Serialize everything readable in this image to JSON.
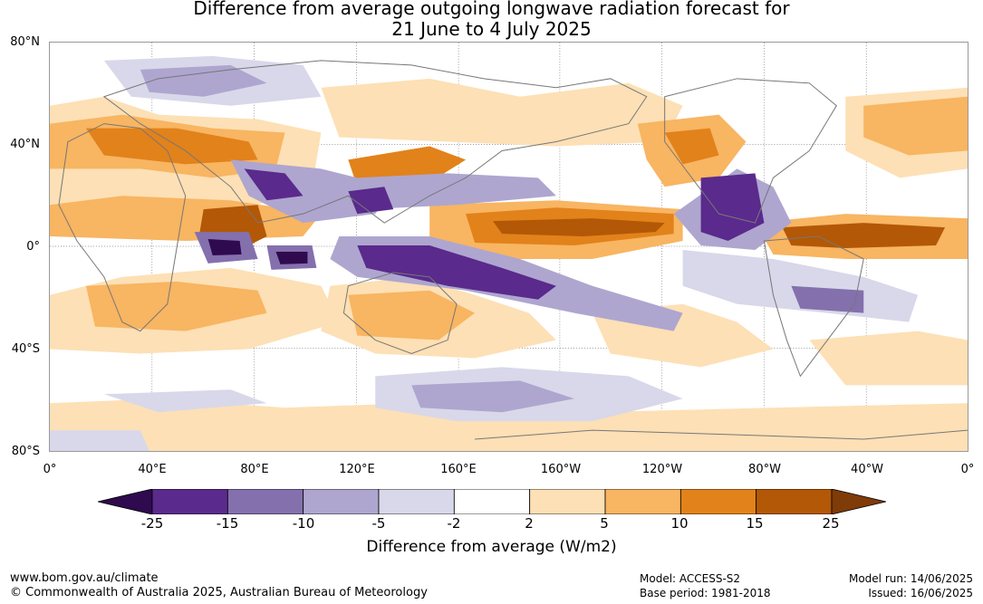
{
  "title": {
    "line1": "Difference from average outgoing longwave radiation forecast for",
    "line2": "21 June to 4 July 2025"
  },
  "map": {
    "lat_labels": [
      "80°N",
      "40°N",
      "0°",
      "40°S",
      "80°S"
    ],
    "lon_labels": [
      "0°",
      "40°E",
      "80°E",
      "120°E",
      "160°E",
      "160°W",
      "120°W",
      "80°W",
      "40°W",
      "0°"
    ]
  },
  "colorbar": {
    "title": "Difference from average (W/m2)",
    "tick_labels": [
      "-25",
      "-15",
      "-10",
      "-5",
      "-2",
      "2",
      "5",
      "10",
      "15",
      "25"
    ],
    "colors": [
      "#2f0a4f",
      "#5a2a8c",
      "#8470ad",
      "#aea6cf",
      "#d8d8ea",
      "#ffffff",
      "#fde0b5",
      "#f8b562",
      "#e2821a",
      "#b35806",
      "#7f3b08"
    ]
  },
  "footer": {
    "website": "www.bom.gov.au/climate",
    "copyright": "© Commonwealth of Australia 2025, Australian Bureau of Meteorology",
    "model": "Model: ACCESS-S2",
    "base_period": "Base period: 1981-2018",
    "model_run": "Model run: 14/06/2025",
    "issued": "Issued: 16/06/2025"
  }
}
